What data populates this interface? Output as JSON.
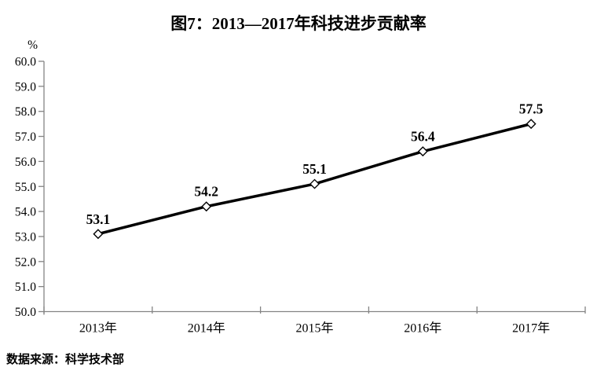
{
  "title": "图7：2013—2017年科技进步贡献率",
  "source_note": "数据来源：科学技术部",
  "chart_data": {
    "type": "line",
    "title": "图7：2013—2017年科技进步贡献率",
    "categories": [
      "2013年",
      "2014年",
      "2015年",
      "2016年",
      "2017年"
    ],
    "values": [
      53.1,
      54.2,
      55.1,
      56.4,
      57.5
    ],
    "data_labels": [
      "53.1",
      "54.2",
      "55.1",
      "56.4",
      "57.5"
    ],
    "unit_label": "%",
    "ylim": [
      50.0,
      60.0
    ],
    "ytick_step": 1.0,
    "ytick_labels": [
      "50.0",
      "51.0",
      "52.0",
      "53.0",
      "54.0",
      "55.0",
      "56.0",
      "57.0",
      "58.0",
      "59.0",
      "60.0"
    ],
    "grid": false,
    "legend": "none",
    "line_color": "#000000",
    "marker_style": "diamond-open",
    "marker_fill": "#ffffff",
    "axis_color": "#848484",
    "source": "数据来源：科学技术部"
  }
}
